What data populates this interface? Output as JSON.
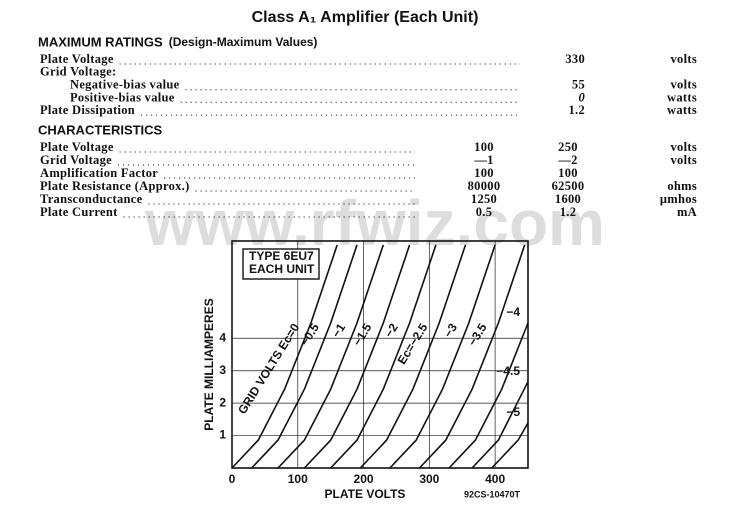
{
  "title": "Class A₁ Amplifier (Each Unit)",
  "watermark": "www.rfwiz.com",
  "maximum_ratings": {
    "heading": "MAXIMUM RATINGS",
    "subheading": "(Design-Maximum Values)",
    "rows": [
      {
        "label": "Plate Voltage",
        "value": "330",
        "unit": "volts"
      },
      {
        "label": "Grid Voltage:"
      },
      {
        "label": "Negative-bias value",
        "value": "55",
        "unit": "volts"
      },
      {
        "label": "Positive-bias value",
        "value": "0",
        "unit": "watts"
      },
      {
        "label": "Plate Dissipation",
        "value": "1.2",
        "unit": "watts"
      }
    ]
  },
  "characteristics": {
    "heading": "CHARACTERISTICS",
    "rows": [
      {
        "label": "Plate Voltage",
        "values": [
          "100",
          "250"
        ],
        "unit": "volts"
      },
      {
        "label": "Grid Voltage",
        "values": [
          "—1",
          "—2"
        ],
        "unit": "volts"
      },
      {
        "label": "Amplification Factor",
        "values": [
          "100",
          "100"
        ]
      },
      {
        "label": "Plate Resistance (Approx.)",
        "values": [
          "80000",
          "62500"
        ],
        "unit": "ohms"
      },
      {
        "label": "Transconductance",
        "values": [
          "1250",
          "1600"
        ],
        "unit": "μmhos"
      },
      {
        "label": "Plate Current",
        "values": [
          "0.5",
          "1.2"
        ],
        "unit": "mA"
      }
    ]
  },
  "chart_data": {
    "type": "line",
    "title_lines": [
      "TYPE 6EU7",
      "EACH UNIT"
    ],
    "x_label": "PLATE VOLTS",
    "y_label": "PLATE MILLIAMPERES",
    "code": "92CS-10470T",
    "xlim": [
      0,
      450
    ],
    "ylim": [
      0,
      7
    ],
    "xticks": [
      0,
      100,
      200,
      300,
      400
    ],
    "yticks": [
      1,
      2,
      3,
      4
    ],
    "grid": true,
    "series": [
      {
        "name": "GRID VOLTS Ec=0",
        "color": "#111111",
        "x": [
          0,
          40,
          80,
          120,
          160
        ],
        "values": [
          0,
          0.86,
          2.43,
          4.47,
          6.88
        ]
      },
      {
        "name": "−0.5",
        "color": "#111111",
        "x": [
          30,
          70,
          110,
          150,
          190
        ],
        "values": [
          0,
          0.86,
          2.43,
          4.47,
          6.88
        ]
      },
      {
        "name": "−1",
        "color": "#111111",
        "x": [
          70,
          110,
          150,
          190,
          230
        ],
        "values": [
          0,
          0.86,
          2.43,
          4.47,
          6.88
        ]
      },
      {
        "name": "−1.5",
        "color": "#111111",
        "x": [
          110,
          150,
          190,
          230,
          270
        ],
        "values": [
          0,
          0.86,
          2.43,
          4.47,
          6.88
        ]
      },
      {
        "name": "−2",
        "color": "#111111",
        "x": [
          150,
          190,
          230,
          270,
          310
        ],
        "values": [
          0,
          0.86,
          2.43,
          4.47,
          6.88
        ]
      },
      {
        "name": "Ec=−2.5",
        "color": "#111111",
        "x": [
          195,
          235,
          275,
          315,
          355
        ],
        "values": [
          0,
          0.86,
          2.43,
          4.47,
          6.88
        ]
      },
      {
        "name": "−3",
        "color": "#111111",
        "x": [
          240,
          280,
          320,
          360,
          400
        ],
        "values": [
          0,
          0.86,
          2.43,
          4.47,
          6.88
        ]
      },
      {
        "name": "−3.5",
        "color": "#111111",
        "x": [
          285,
          325,
          365,
          405,
          445
        ],
        "values": [
          0,
          0.86,
          2.43,
          4.47,
          6.88
        ]
      },
      {
        "name": "−4",
        "color": "#111111",
        "x": [
          330,
          370,
          410,
          450
        ],
        "values": [
          0,
          0.86,
          2.43,
          4.47
        ]
      },
      {
        "name": "−4.5",
        "color": "#111111",
        "x": [
          365,
          405,
          450
        ],
        "values": [
          0,
          0.86,
          2.66
        ]
      },
      {
        "name": "−5",
        "color": "#111111",
        "x": [
          395,
          435,
          450
        ],
        "values": [
          0,
          0.86,
          1.39
        ]
      }
    ]
  }
}
